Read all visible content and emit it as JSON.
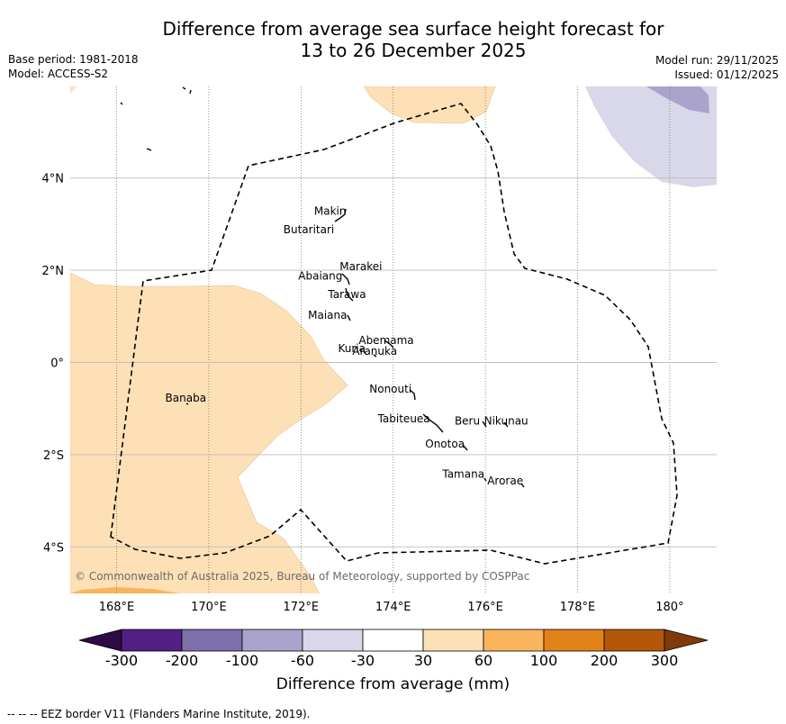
{
  "header": {
    "title_line1": "Difference from average sea surface height forecast for",
    "title_line2": "13 to 26 December 2025",
    "base_period": "Base period: 1981-2018",
    "model": "Model: ACCESS-S2",
    "model_run": "Model run: 29/11/2025",
    "issued": "Issued: 01/12/2025"
  },
  "map": {
    "lon_ticks": [
      {
        "value": 168,
        "label": "168°E"
      },
      {
        "value": 170,
        "label": "170°E"
      },
      {
        "value": 172,
        "label": "172°E"
      },
      {
        "value": 174,
        "label": "174°E"
      },
      {
        "value": 176,
        "label": "176°E"
      },
      {
        "value": 178,
        "label": "178°E"
      },
      {
        "value": 180,
        "label": "180°"
      }
    ],
    "lat_ticks": [
      {
        "value": 4,
        "label": "4°N"
      },
      {
        "value": 2,
        "label": "2°N"
      },
      {
        "value": 0,
        "label": "0°"
      },
      {
        "value": -2,
        "label": "2°S"
      },
      {
        "value": -4,
        "label": "4°S"
      }
    ],
    "extent": {
      "lon_min": 167,
      "lon_max": 181,
      "lat_min": -5,
      "lat_max": 6
    },
    "islands": [
      {
        "name": "Makin",
        "lon": 173.0,
        "lat": 3.2
      },
      {
        "name": "Butaritari",
        "lon": 172.8,
        "lat": 3.0
      },
      {
        "name": "Marakei",
        "lon": 173.3,
        "lat": 2.0
      },
      {
        "name": "Abaiang",
        "lon": 172.9,
        "lat": 1.8
      },
      {
        "name": "Tarawa",
        "lon": 173.0,
        "lat": 1.4
      },
      {
        "name": "Maiana",
        "lon": 173.0,
        "lat": 0.95
      },
      {
        "name": "Abemama",
        "lon": 173.85,
        "lat": 0.4
      },
      {
        "name": "Kuria",
        "lon": 173.4,
        "lat": 0.22
      },
      {
        "name": "Aranuka",
        "lon": 173.6,
        "lat": 0.17
      },
      {
        "name": "Nonouti",
        "lon": 174.4,
        "lat": -0.65
      },
      {
        "name": "Tabiteuea",
        "lon": 174.8,
        "lat": -1.3
      },
      {
        "name": "Beru",
        "lon": 176.0,
        "lat": -1.35
      },
      {
        "name": "Nikunau",
        "lon": 176.45,
        "lat": -1.35
      },
      {
        "name": "Onotoa",
        "lon": 175.55,
        "lat": -1.85
      },
      {
        "name": "Tamana",
        "lon": 175.98,
        "lat": -2.5
      },
      {
        "name": "Arorae",
        "lon": 176.82,
        "lat": -2.65
      },
      {
        "name": "Banaba",
        "lon": 169.5,
        "lat": -0.85
      }
    ],
    "copyright": "© Commonwealth of Australia 2025, Bureau of Meteorology, supported by COSPPac"
  },
  "colorbar": {
    "title": "Difference from average (mm)",
    "labels": [
      "-300",
      "-200",
      "-100",
      "-60",
      "-30",
      "30",
      "60",
      "100",
      "200",
      "300"
    ],
    "colors": [
      "#2e0a46",
      "#522082",
      "#7d6fa9",
      "#aaa4cc",
      "#d8d8ea",
      "#ffffff",
      "#fde0b6",
      "#f9b45d",
      "#e2831a",
      "#b25808",
      "#7f3a07"
    ]
  },
  "footer": {
    "eez_note": "--  --  -- EEZ border V11 (Flanders Marine Institute, 2019)."
  }
}
